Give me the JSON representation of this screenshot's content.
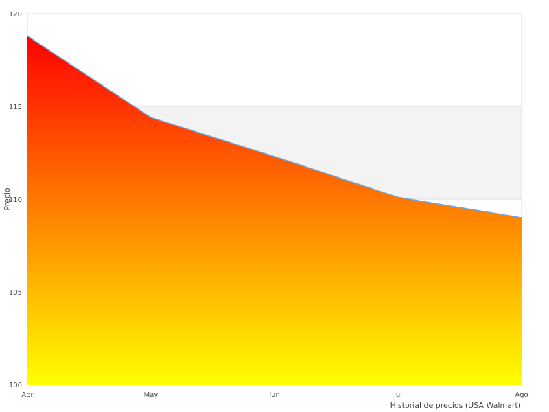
{
  "chart_data": {
    "type": "area",
    "title": "",
    "xlabel": "Historial de precios (USA Walmart)",
    "ylabel": "Precio",
    "categories": [
      "Abr",
      "May",
      "Jun",
      "Jul",
      "Ago"
    ],
    "series": [
      {
        "values": [
          118.8,
          114.4,
          112.3,
          110.1,
          109.0
        ]
      }
    ],
    "ylim": [
      100,
      120
    ],
    "yticks": [
      100,
      105,
      110,
      115,
      120
    ],
    "grid": true,
    "colors": {
      "fill_top": "#ff0000",
      "fill_bottom": "#ffff00",
      "line": "#6ba7e8",
      "band": "#f3f3f3",
      "grid": "#dddddd"
    }
  }
}
